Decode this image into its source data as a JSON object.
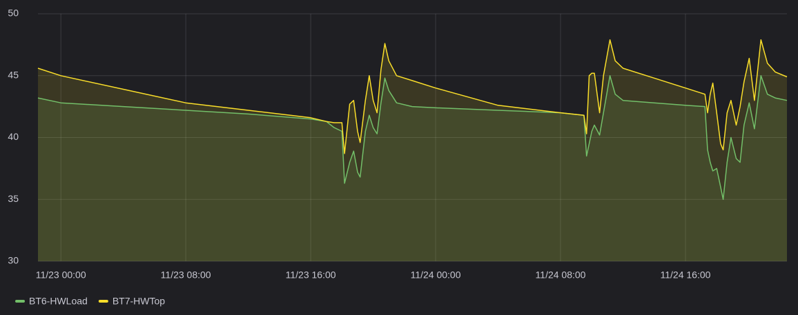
{
  "chart_data": {
    "type": "line",
    "x": [
      "11/22 22:32",
      "11/23 00:00",
      "11/23 04:00",
      "11/23 08:00",
      "11/23 12:00",
      "11/23 16:00",
      "11/23 17:00",
      "11/23 17:30",
      "11/23 18:00",
      "11/23 18:10",
      "11/23 18:30",
      "11/23 18:45",
      "11/23 19:00",
      "11/23 19:10",
      "11/23 19:30",
      "11/23 19:45",
      "11/23 20:00",
      "11/23 20:15",
      "11/23 20:30",
      "11/23 20:45",
      "11/23 21:00",
      "11/23 21:30",
      "11/23 22:30",
      "11/24 00:00",
      "11/24 04:00",
      "11/24 08:00",
      "11/24 09:30",
      "11/24 09:40",
      "11/24 09:50",
      "11/24 10:00",
      "11/24 10:10",
      "11/24 10:30",
      "11/24 10:45",
      "11/24 11:10",
      "11/24 11:30",
      "11/24 12:00",
      "11/24 14:00",
      "11/24 16:00",
      "11/24 17:15",
      "11/24 17:25",
      "11/24 17:35",
      "11/24 17:45",
      "11/24 18:00",
      "11/24 18:15",
      "11/24 18:25",
      "11/24 18:40",
      "11/24 18:55",
      "11/24 19:15",
      "11/24 19:30",
      "11/24 19:45",
      "11/24 20:05",
      "11/24 20:25",
      "11/24 20:50",
      "11/24 21:15",
      "11/24 21:45",
      "11/24 22:30"
    ],
    "series": [
      {
        "name": "BT6-HWLoad",
        "color": "#73BF69",
        "values": [
          43.2,
          42.8,
          42.5,
          42.2,
          41.9,
          41.5,
          41.3,
          40.8,
          40.5,
          36.3,
          38.0,
          38.9,
          37.2,
          36.8,
          40.5,
          41.8,
          40.8,
          40.3,
          42.8,
          44.8,
          43.8,
          42.8,
          42.5,
          42.4,
          42.2,
          42.0,
          41.8,
          38.5,
          39.5,
          40.5,
          41.0,
          40.2,
          42.0,
          45.0,
          43.5,
          43.0,
          42.8,
          42.6,
          42.5,
          39.0,
          38.0,
          37.3,
          37.5,
          36.0,
          35.0,
          38.0,
          40.0,
          38.3,
          38.0,
          41.0,
          42.8,
          40.7,
          45.0,
          43.5,
          43.2,
          43.0
        ]
      },
      {
        "name": "BT7-HWTop",
        "color": "#FADE2A",
        "values": [
          45.6,
          45.0,
          43.9,
          42.8,
          42.2,
          41.6,
          41.3,
          41.2,
          41.2,
          38.7,
          42.7,
          43.0,
          40.5,
          39.6,
          43.0,
          45.0,
          43.0,
          42.0,
          45.5,
          47.6,
          46.2,
          45.0,
          44.6,
          44.0,
          42.6,
          42.0,
          41.8,
          40.3,
          45.0,
          45.2,
          45.2,
          42.0,
          45.0,
          47.9,
          46.2,
          45.6,
          44.8,
          44.0,
          43.5,
          42.0,
          43.5,
          44.4,
          42.0,
          39.5,
          39.0,
          42.0,
          43.0,
          41.0,
          42.5,
          44.5,
          46.4,
          43.0,
          47.9,
          46.0,
          45.3,
          44.9
        ]
      }
    ],
    "xlim": [
      "11/22 22:32",
      "11/24 22:30"
    ],
    "xticks": [
      "11/23 00:00",
      "11/23 08:00",
      "11/23 16:00",
      "11/24 00:00",
      "11/24 08:00",
      "11/24 16:00"
    ],
    "ylim": [
      30,
      50
    ],
    "yticks": [
      30,
      35,
      40,
      45,
      50
    ],
    "grid": true
  }
}
